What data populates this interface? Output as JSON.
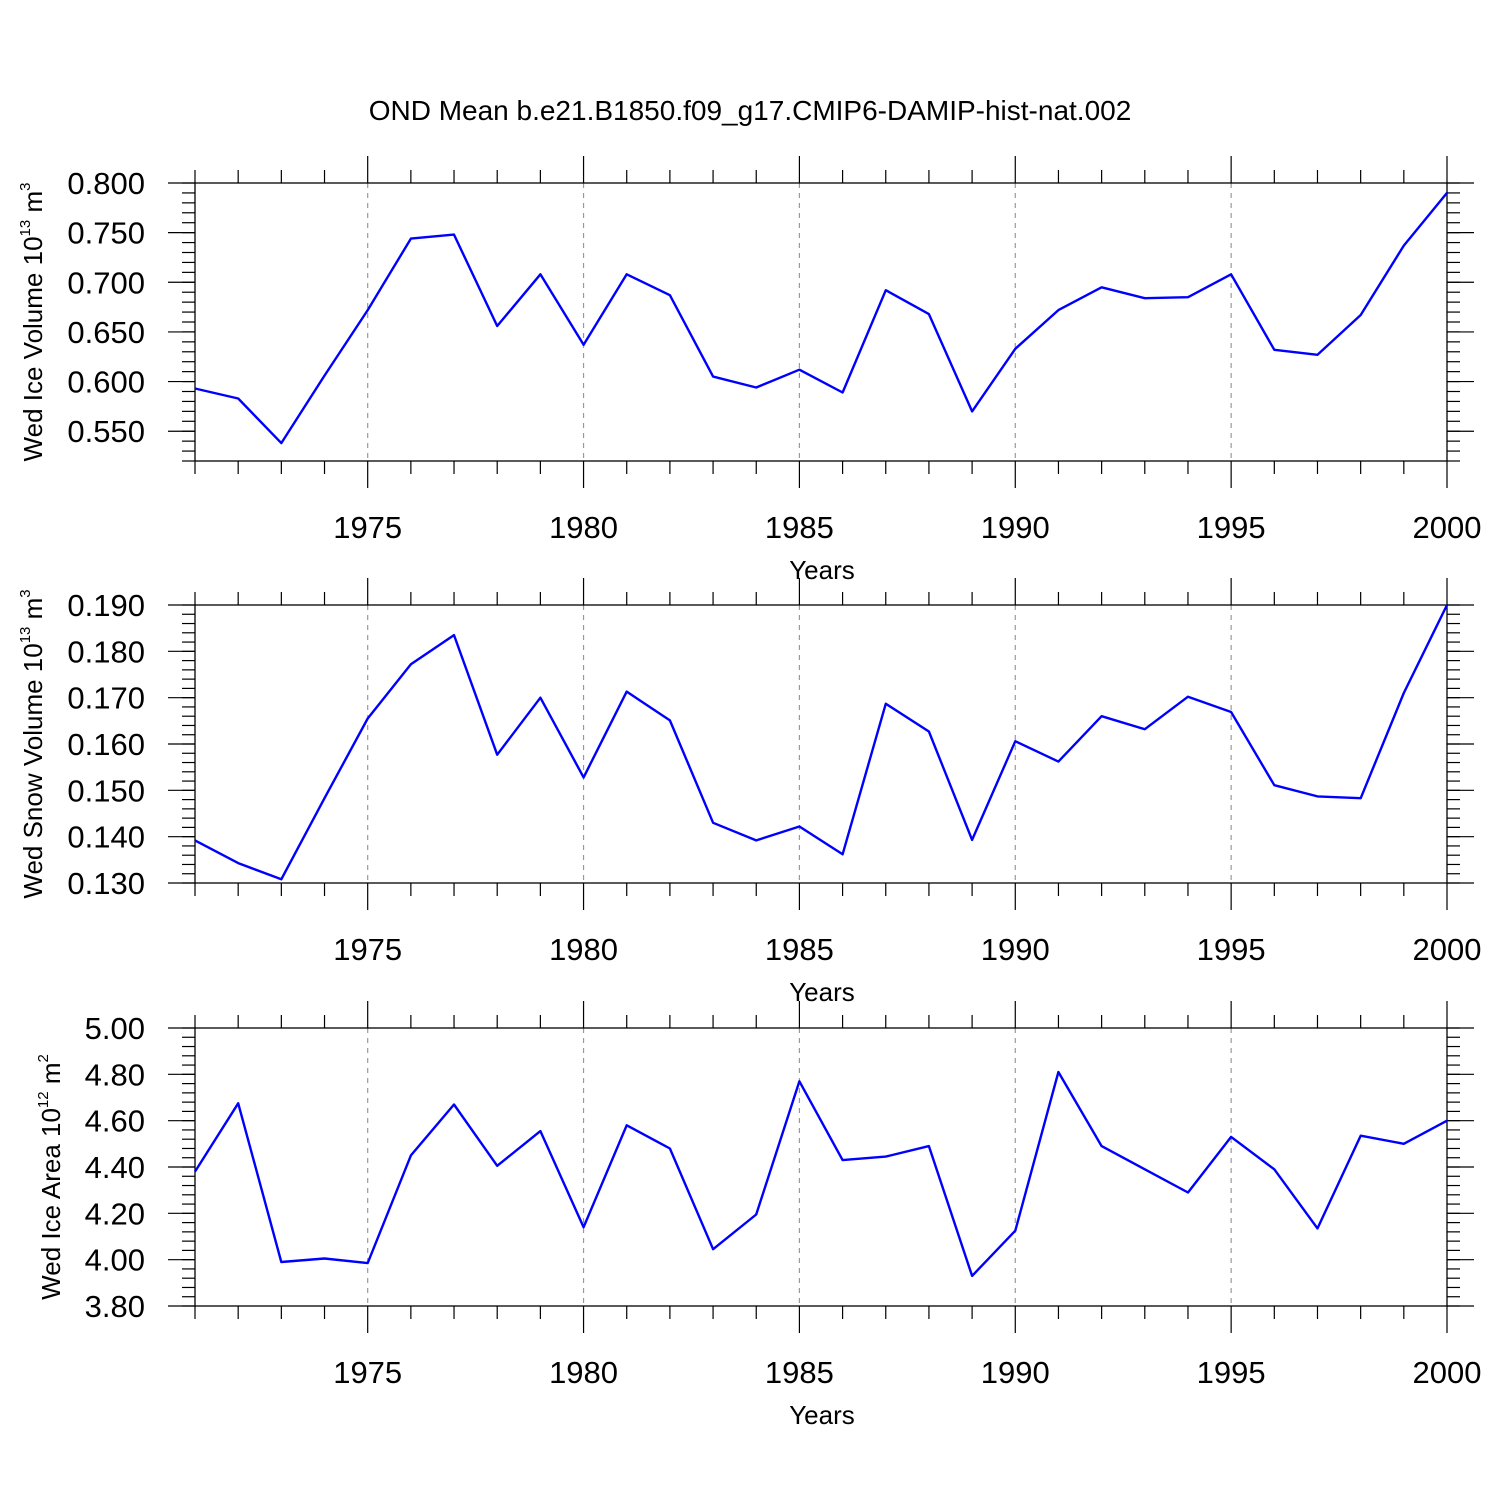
{
  "title": "OND Mean b.e21.B1850.f09_g17.CMIP6-DAMIP-hist-nat.002",
  "line_color": "#0000ff",
  "chart_data": [
    {
      "type": "line",
      "ylabel": {
        "text": "Wed Ice Volume 10",
        "sup": "13",
        "unit": " m",
        "unit_sup": "3"
      },
      "xlabel": "Years",
      "xlim": [
        1971,
        2000
      ],
      "ylim": [
        0.52,
        0.8
      ],
      "yticks": [
        0.55,
        0.6,
        0.65,
        0.7,
        0.75,
        0.8
      ],
      "ytick_labels": [
        "0.550",
        "0.600",
        "0.650",
        "0.700",
        "0.750",
        "0.800"
      ],
      "yminor_step": 0.01,
      "xticks": [
        1975,
        1980,
        1985,
        1990,
        1995,
        2000
      ],
      "xtick_labels": [
        "1975",
        "1980",
        "1985",
        "1990",
        "1995",
        "2000"
      ],
      "grid_x": true,
      "x": [
        1971,
        1972,
        1973,
        1974,
        1975,
        1976,
        1977,
        1978,
        1979,
        1980,
        1981,
        1982,
        1983,
        1984,
        1985,
        1986,
        1987,
        1988,
        1989,
        1990,
        1991,
        1992,
        1993,
        1994,
        1995,
        1996,
        1997,
        1998,
        1999,
        2000
      ],
      "values": [
        0.593,
        0.583,
        0.538,
        0.606,
        0.672,
        0.744,
        0.748,
        0.656,
        0.708,
        0.637,
        0.708,
        0.687,
        0.605,
        0.594,
        0.612,
        0.589,
        0.692,
        0.668,
        0.57,
        0.633,
        0.672,
        0.695,
        0.684,
        0.685,
        0.708,
        0.632,
        0.627,
        0.667,
        0.737,
        0.79
      ]
    },
    {
      "type": "line",
      "ylabel": {
        "text": "Wed Snow Volume 10",
        "sup": "13",
        "unit": " m",
        "unit_sup": "3"
      },
      "xlabel": "Years",
      "xlim": [
        1971,
        2000
      ],
      "ylim": [
        0.13,
        0.19
      ],
      "yticks": [
        0.13,
        0.14,
        0.15,
        0.16,
        0.17,
        0.18,
        0.19
      ],
      "ytick_labels": [
        "0.130",
        "0.140",
        "0.150",
        "0.160",
        "0.170",
        "0.180",
        "0.190"
      ],
      "yminor_step": 0.002,
      "xticks": [
        1975,
        1980,
        1985,
        1990,
        1995,
        2000
      ],
      "xtick_labels": [
        "1975",
        "1980",
        "1985",
        "1990",
        "1995",
        "2000"
      ],
      "grid_x": true,
      "x": [
        1971,
        1972,
        1973,
        1974,
        1975,
        1976,
        1977,
        1978,
        1979,
        1980,
        1981,
        1982,
        1983,
        1984,
        1985,
        1986,
        1987,
        1988,
        1989,
        1990,
        1991,
        1992,
        1993,
        1994,
        1995,
        1996,
        1997,
        1998,
        1999,
        2000
      ],
      "values": [
        0.1392,
        0.1343,
        0.1308,
        0.1483,
        0.1655,
        0.1772,
        0.1835,
        0.1577,
        0.17,
        0.1528,
        0.1713,
        0.1651,
        0.143,
        0.1392,
        0.1422,
        0.1362,
        0.1687,
        0.1627,
        0.1393,
        0.1606,
        0.1562,
        0.166,
        0.1632,
        0.1702,
        0.1669,
        0.1511,
        0.1487,
        0.1483,
        0.171,
        0.19
      ]
    },
    {
      "type": "line",
      "ylabel": {
        "text": "Wed Ice Area 10",
        "sup": "12",
        "unit": " m",
        "unit_sup": "2"
      },
      "xlabel": "Years",
      "xlim": [
        1971,
        2000
      ],
      "ylim": [
        3.8,
        5.0
      ],
      "yticks": [
        3.8,
        4.0,
        4.2,
        4.4,
        4.6,
        4.8,
        5.0
      ],
      "ytick_labels": [
        "3.80",
        "4.00",
        "4.20",
        "4.40",
        "4.60",
        "4.80",
        "5.00"
      ],
      "yminor_step": 0.04,
      "xticks": [
        1975,
        1980,
        1985,
        1990,
        1995,
        2000
      ],
      "xtick_labels": [
        "1975",
        "1980",
        "1985",
        "1990",
        "1995",
        "2000"
      ],
      "grid_x": true,
      "x": [
        1971,
        1972,
        1973,
        1974,
        1975,
        1976,
        1977,
        1978,
        1979,
        1980,
        1981,
        1982,
        1983,
        1984,
        1985,
        1986,
        1987,
        1988,
        1989,
        1990,
        1991,
        1992,
        1993,
        1994,
        1995,
        1996,
        1997,
        1998,
        1999,
        2000
      ],
      "values": [
        4.38,
        4.675,
        3.99,
        4.005,
        3.985,
        4.45,
        4.67,
        4.405,
        4.555,
        4.14,
        4.58,
        4.48,
        4.045,
        4.195,
        4.77,
        4.43,
        4.445,
        4.49,
        3.93,
        4.125,
        4.81,
        4.49,
        4.39,
        4.29,
        4.53,
        4.39,
        4.135,
        4.535,
        4.5,
        4.6
      ]
    }
  ]
}
